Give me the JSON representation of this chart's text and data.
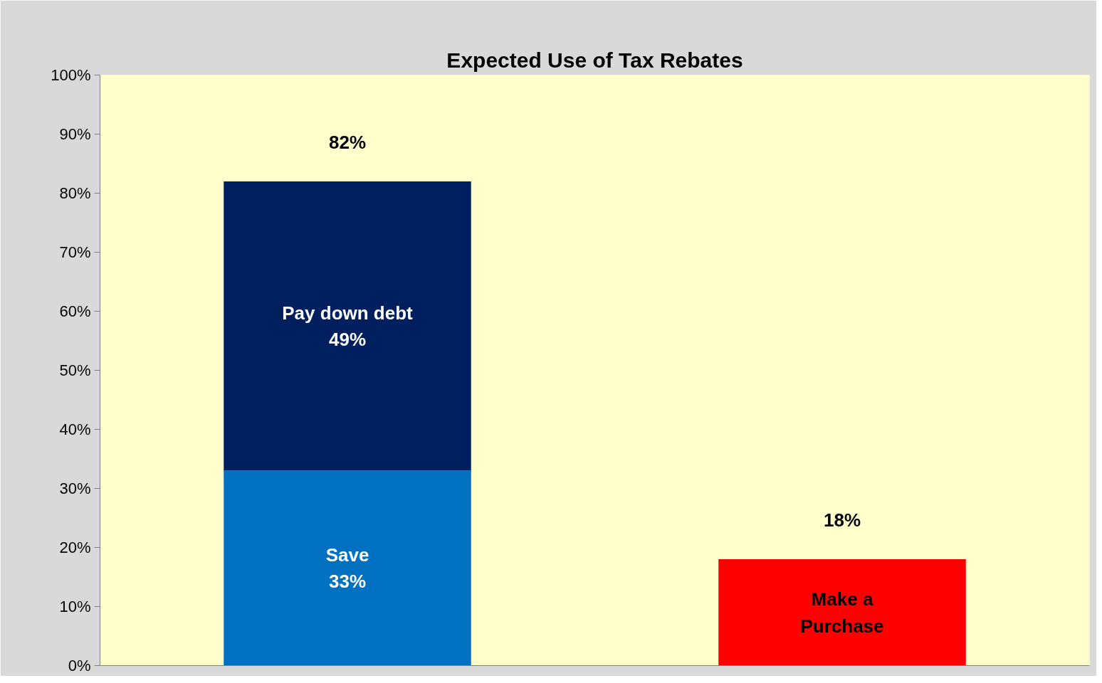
{
  "chart_data": {
    "type": "bar",
    "title": "Expected Use of Tax Rebates",
    "stacked": true,
    "categories": [
      null,
      null
    ],
    "series": [
      {
        "name": "Save",
        "color": "#0070c0",
        "values": [
          33,
          null
        ],
        "value_labels": [
          "33%",
          null
        ]
      },
      {
        "name": "Pay down debt",
        "color": "#001f5f",
        "values": [
          49,
          null
        ],
        "value_labels": [
          "49%",
          null
        ]
      },
      {
        "name": "Make a\nPurchase",
        "color": "#ff0000",
        "values": [
          null,
          18
        ],
        "value_labels": [
          null,
          null
        ]
      }
    ],
    "totals": [
      "82%",
      "18%"
    ],
    "ylim": [
      0,
      100
    ],
    "yticks": [
      {
        "value": 0,
        "label": "0%"
      },
      {
        "value": 10,
        "label": "10%"
      },
      {
        "value": 20,
        "label": "20%"
      },
      {
        "value": 30,
        "label": "30%"
      },
      {
        "value": 40,
        "label": "40%"
      },
      {
        "value": 50,
        "label": "50%"
      },
      {
        "value": 60,
        "label": "60%"
      },
      {
        "value": 70,
        "label": "70%"
      },
      {
        "value": 80,
        "label": "80%"
      },
      {
        "value": 90,
        "label": "90%"
      },
      {
        "value": 100,
        "label": "100%"
      }
    ],
    "grid": false
  }
}
